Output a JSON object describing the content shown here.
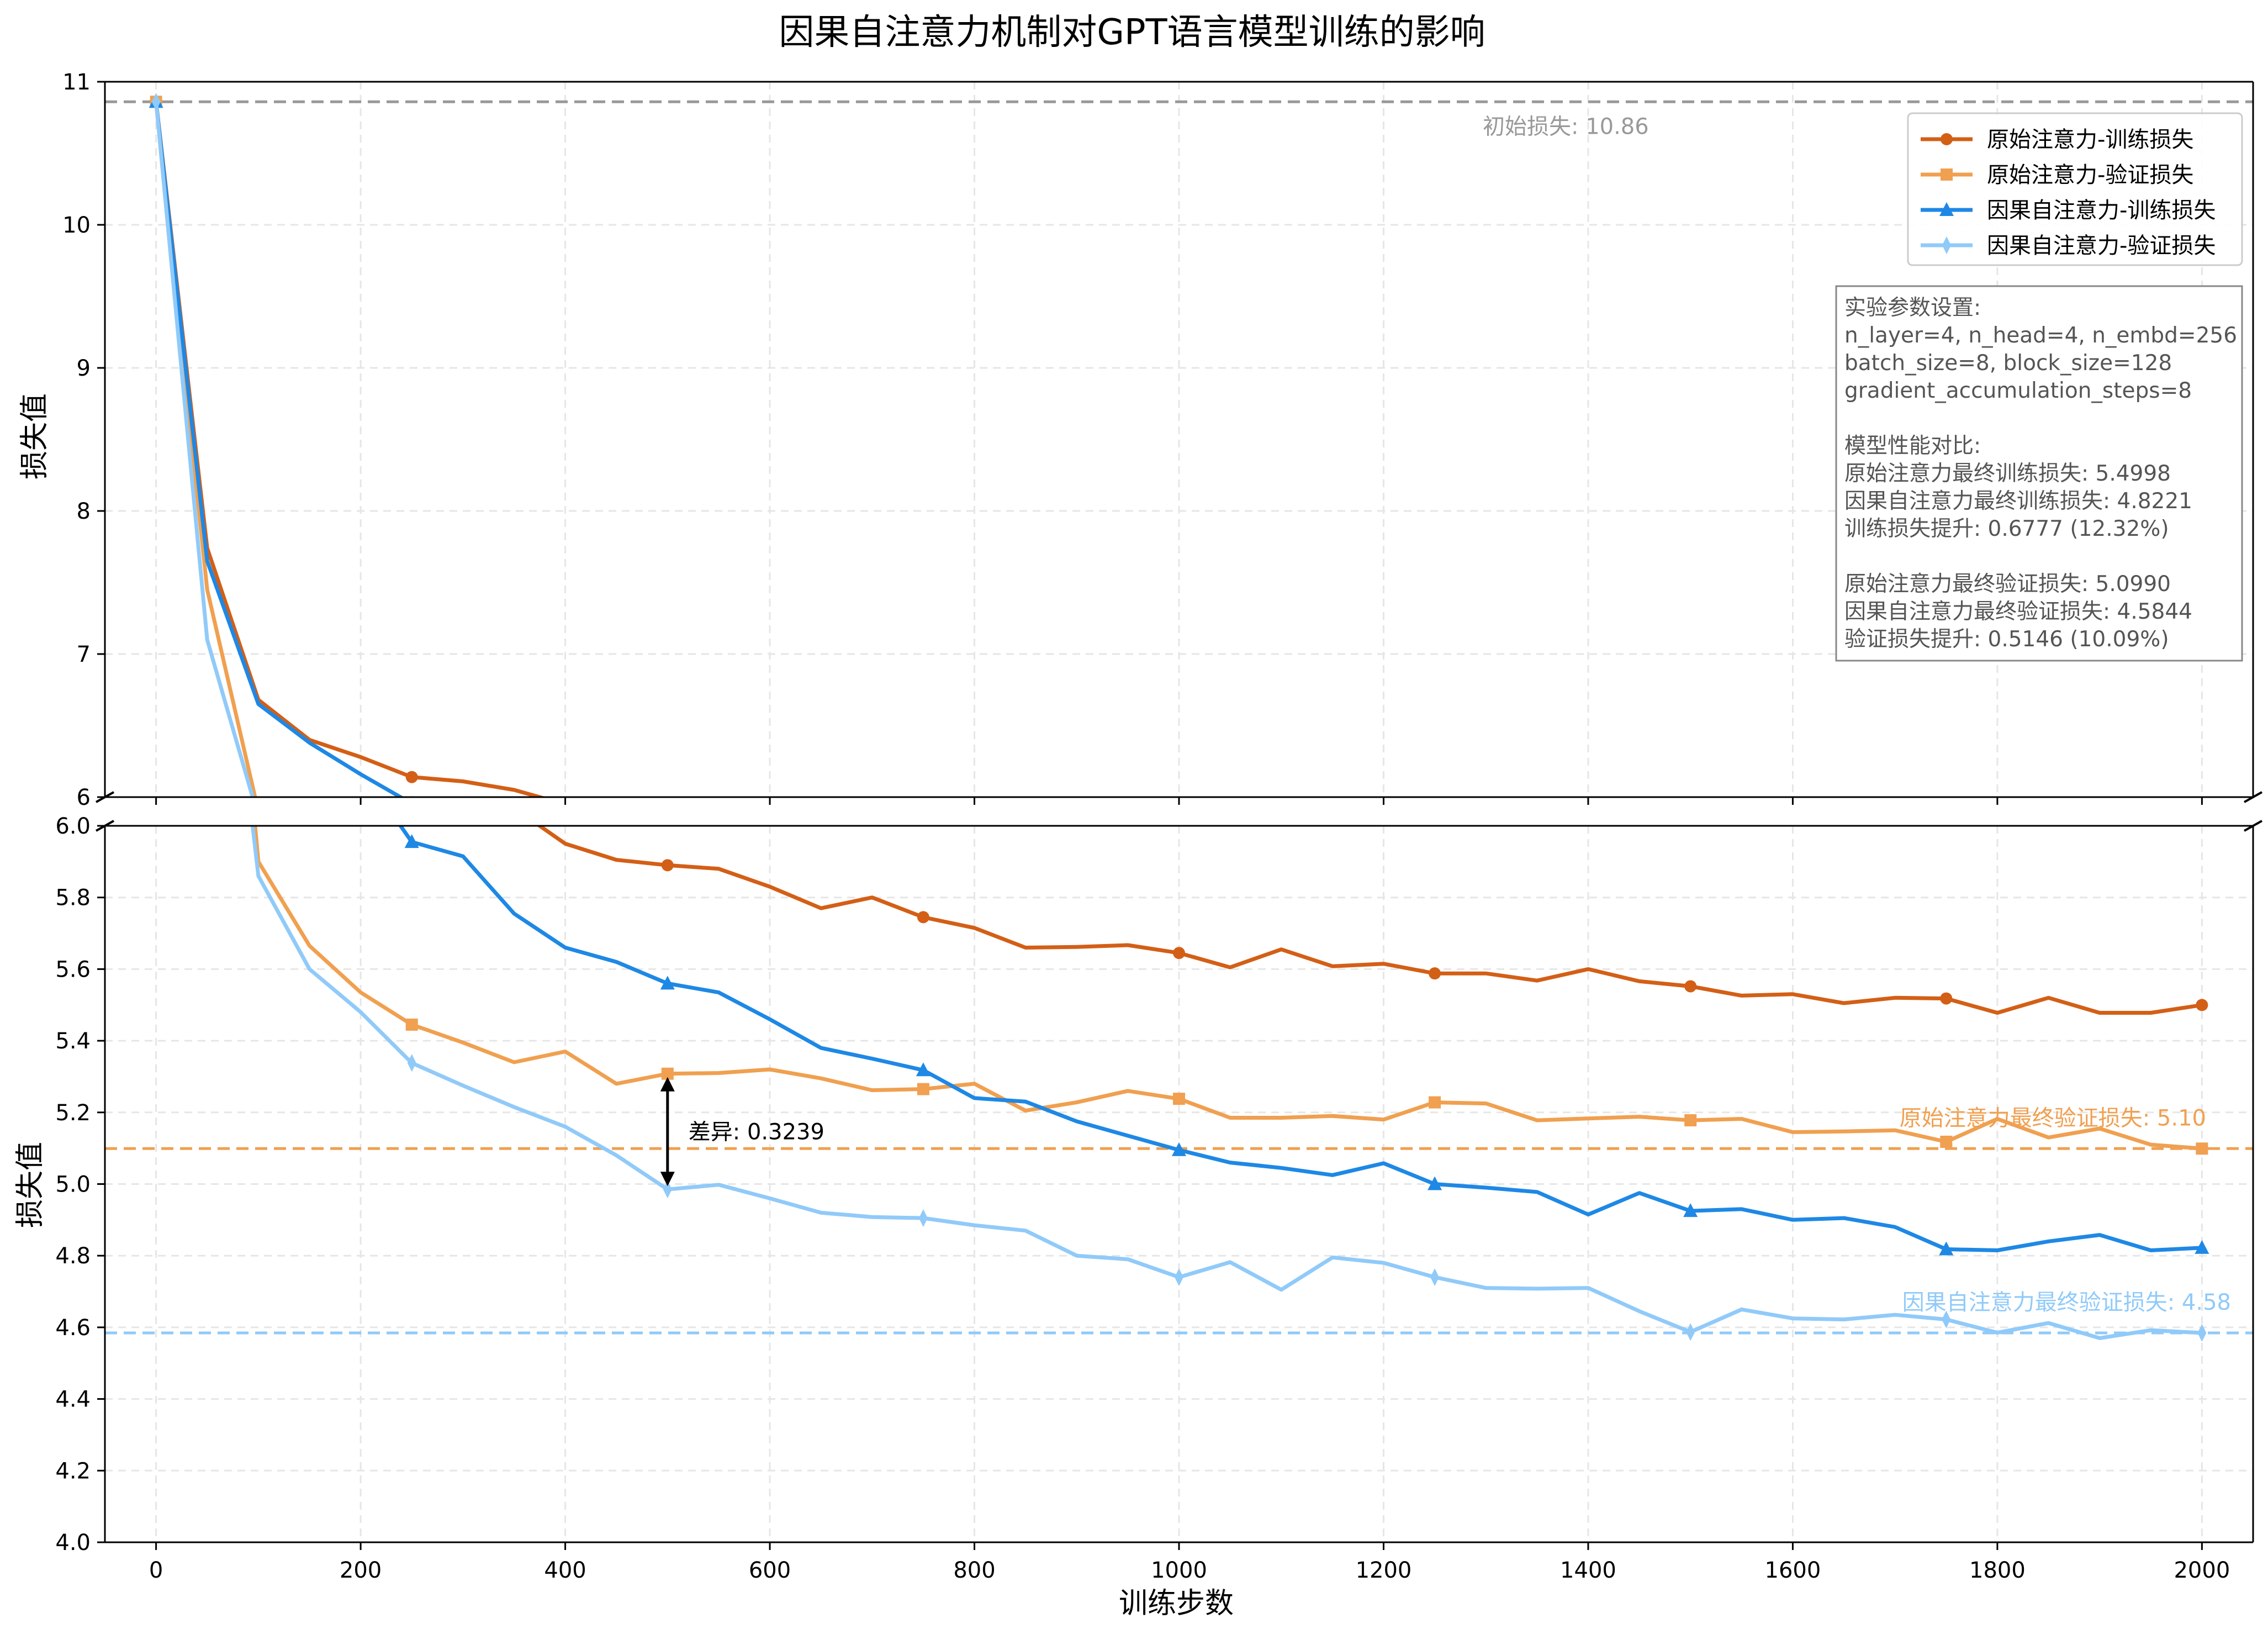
{
  "chart_data": {
    "type": "line",
    "title": "因果自注意力机制对GPT语言模型训练的影响",
    "xlabel": "训练步数",
    "ylabel_top": "损失值",
    "ylabel_bottom": "损失值",
    "layout": "broken y-axis: top panel 6–11, bottom panel 4.0–6.0",
    "xlim": [
      -50,
      2050
    ],
    "x_ticks": [
      0,
      200,
      400,
      600,
      800,
      1000,
      1200,
      1400,
      1600,
      1800,
      2000
    ],
    "top_panel": {
      "ylim": [
        6,
        11
      ],
      "y_ticks": [
        "6",
        "7",
        "8",
        "9",
        "10",
        "11"
      ]
    },
    "bottom_panel": {
      "ylim": [
        4.0,
        6.0
      ],
      "y_ticks": [
        "4.0",
        "4.2",
        "4.4",
        "4.6",
        "4.8",
        "5.0",
        "5.2",
        "5.4",
        "5.6",
        "5.8",
        "6.0"
      ]
    },
    "grid": true,
    "legend_position": "top-right",
    "x": [
      0,
      50,
      100,
      150,
      200,
      250,
      300,
      350,
      400,
      450,
      500,
      550,
      600,
      650,
      700,
      750,
      800,
      850,
      900,
      950,
      1000,
      1050,
      1100,
      1150,
      1200,
      1250,
      1300,
      1350,
      1400,
      1450,
      1500,
      1550,
      1600,
      1650,
      1700,
      1750,
      1800,
      1850,
      1900,
      1950,
      2000
    ],
    "series": [
      {
        "name": "原始注意力-训练损失",
        "color": "#d35f16",
        "marker": "circle",
        "values": [
          10.86,
          7.74,
          6.68,
          6.4,
          6.28,
          6.14,
          6.11,
          6.05,
          5.95,
          5.905,
          5.89,
          5.88,
          5.83,
          5.77,
          5.8,
          5.745,
          5.715,
          5.66,
          5.662,
          5.667,
          5.645,
          5.605,
          5.655,
          5.608,
          5.615,
          5.588,
          5.588,
          5.568,
          5.6,
          5.566,
          5.552,
          5.526,
          5.53,
          5.505,
          5.52,
          5.518,
          5.478,
          5.52,
          5.478,
          5.478,
          5.4998
        ]
      },
      {
        "name": "原始注意力-验证损失",
        "color": "#f0a050",
        "marker": "square",
        "values": [
          10.86,
          7.45,
          5.9,
          5.665,
          5.535,
          5.445,
          5.395,
          5.34,
          5.37,
          5.28,
          5.308,
          5.31,
          5.32,
          5.295,
          5.262,
          5.265,
          5.28,
          5.205,
          5.228,
          5.26,
          5.238,
          5.185,
          5.185,
          5.19,
          5.18,
          5.228,
          5.225,
          5.178,
          5.183,
          5.188,
          5.178,
          5.182,
          5.145,
          5.147,
          5.15,
          5.118,
          5.182,
          5.13,
          5.155,
          5.11,
          5.099
        ]
      },
      {
        "name": "因果自注意力-训练损失",
        "color": "#1e88e5",
        "marker": "triangle",
        "values": [
          10.86,
          7.65,
          6.65,
          6.38,
          6.16,
          5.955,
          5.915,
          5.755,
          5.66,
          5.62,
          5.56,
          5.535,
          5.46,
          5.38,
          5.35,
          5.318,
          5.24,
          5.23,
          5.175,
          5.135,
          5.095,
          5.06,
          5.045,
          5.025,
          5.058,
          5.0,
          4.99,
          4.978,
          4.915,
          4.975,
          4.925,
          4.93,
          4.9,
          4.905,
          4.88,
          4.818,
          4.815,
          4.84,
          4.858,
          4.815,
          4.8221
        ]
      },
      {
        "name": "因果自注意力-验证损失",
        "color": "#90caf9",
        "marker": "diamond",
        "values": [
          10.86,
          7.1,
          5.86,
          5.6,
          5.48,
          5.338,
          5.275,
          5.215,
          5.16,
          5.08,
          4.985,
          4.998,
          4.96,
          4.92,
          4.908,
          4.905,
          4.885,
          4.87,
          4.8,
          4.79,
          4.74,
          4.782,
          4.705,
          4.795,
          4.78,
          4.74,
          4.71,
          4.708,
          4.71,
          4.645,
          4.587,
          4.65,
          4.625,
          4.622,
          4.635,
          4.622,
          4.585,
          4.612,
          4.57,
          4.592,
          4.5844
        ]
      }
    ],
    "reference_lines": [
      {
        "label": "初始损失: 10.86",
        "y": 10.86,
        "panel": "top",
        "color": "#999999"
      },
      {
        "label": "原始注意力最终验证损失: 5.10",
        "y": 5.099,
        "panel": "bottom",
        "color": "#f0a050"
      },
      {
        "label": "因果自注意力最终验证损失: 4.58",
        "y": 4.5844,
        "panel": "bottom",
        "color": "#90caf9"
      }
    ],
    "difference_annotation": {
      "label": "差异: 0.3239",
      "x": 500,
      "y_from": 4.985,
      "y_to": 5.308
    },
    "info_box_lines": [
      "实验参数设置:",
      "n_layer=4, n_head=4, n_embd=256",
      "batch_size=8, block_size=128",
      "gradient_accumulation_steps=8",
      "",
      "模型性能对比:",
      "原始注意力最终训练损失: 5.4998",
      "因果自注意力最终训练损失: 4.8221",
      "训练损失提升: 0.6777 (12.32%)",
      "",
      "原始注意力最终验证损失: 5.0990",
      "因果自注意力最终验证损失: 4.5844",
      "验证损失提升: 0.5146 (10.09%)"
    ]
  }
}
